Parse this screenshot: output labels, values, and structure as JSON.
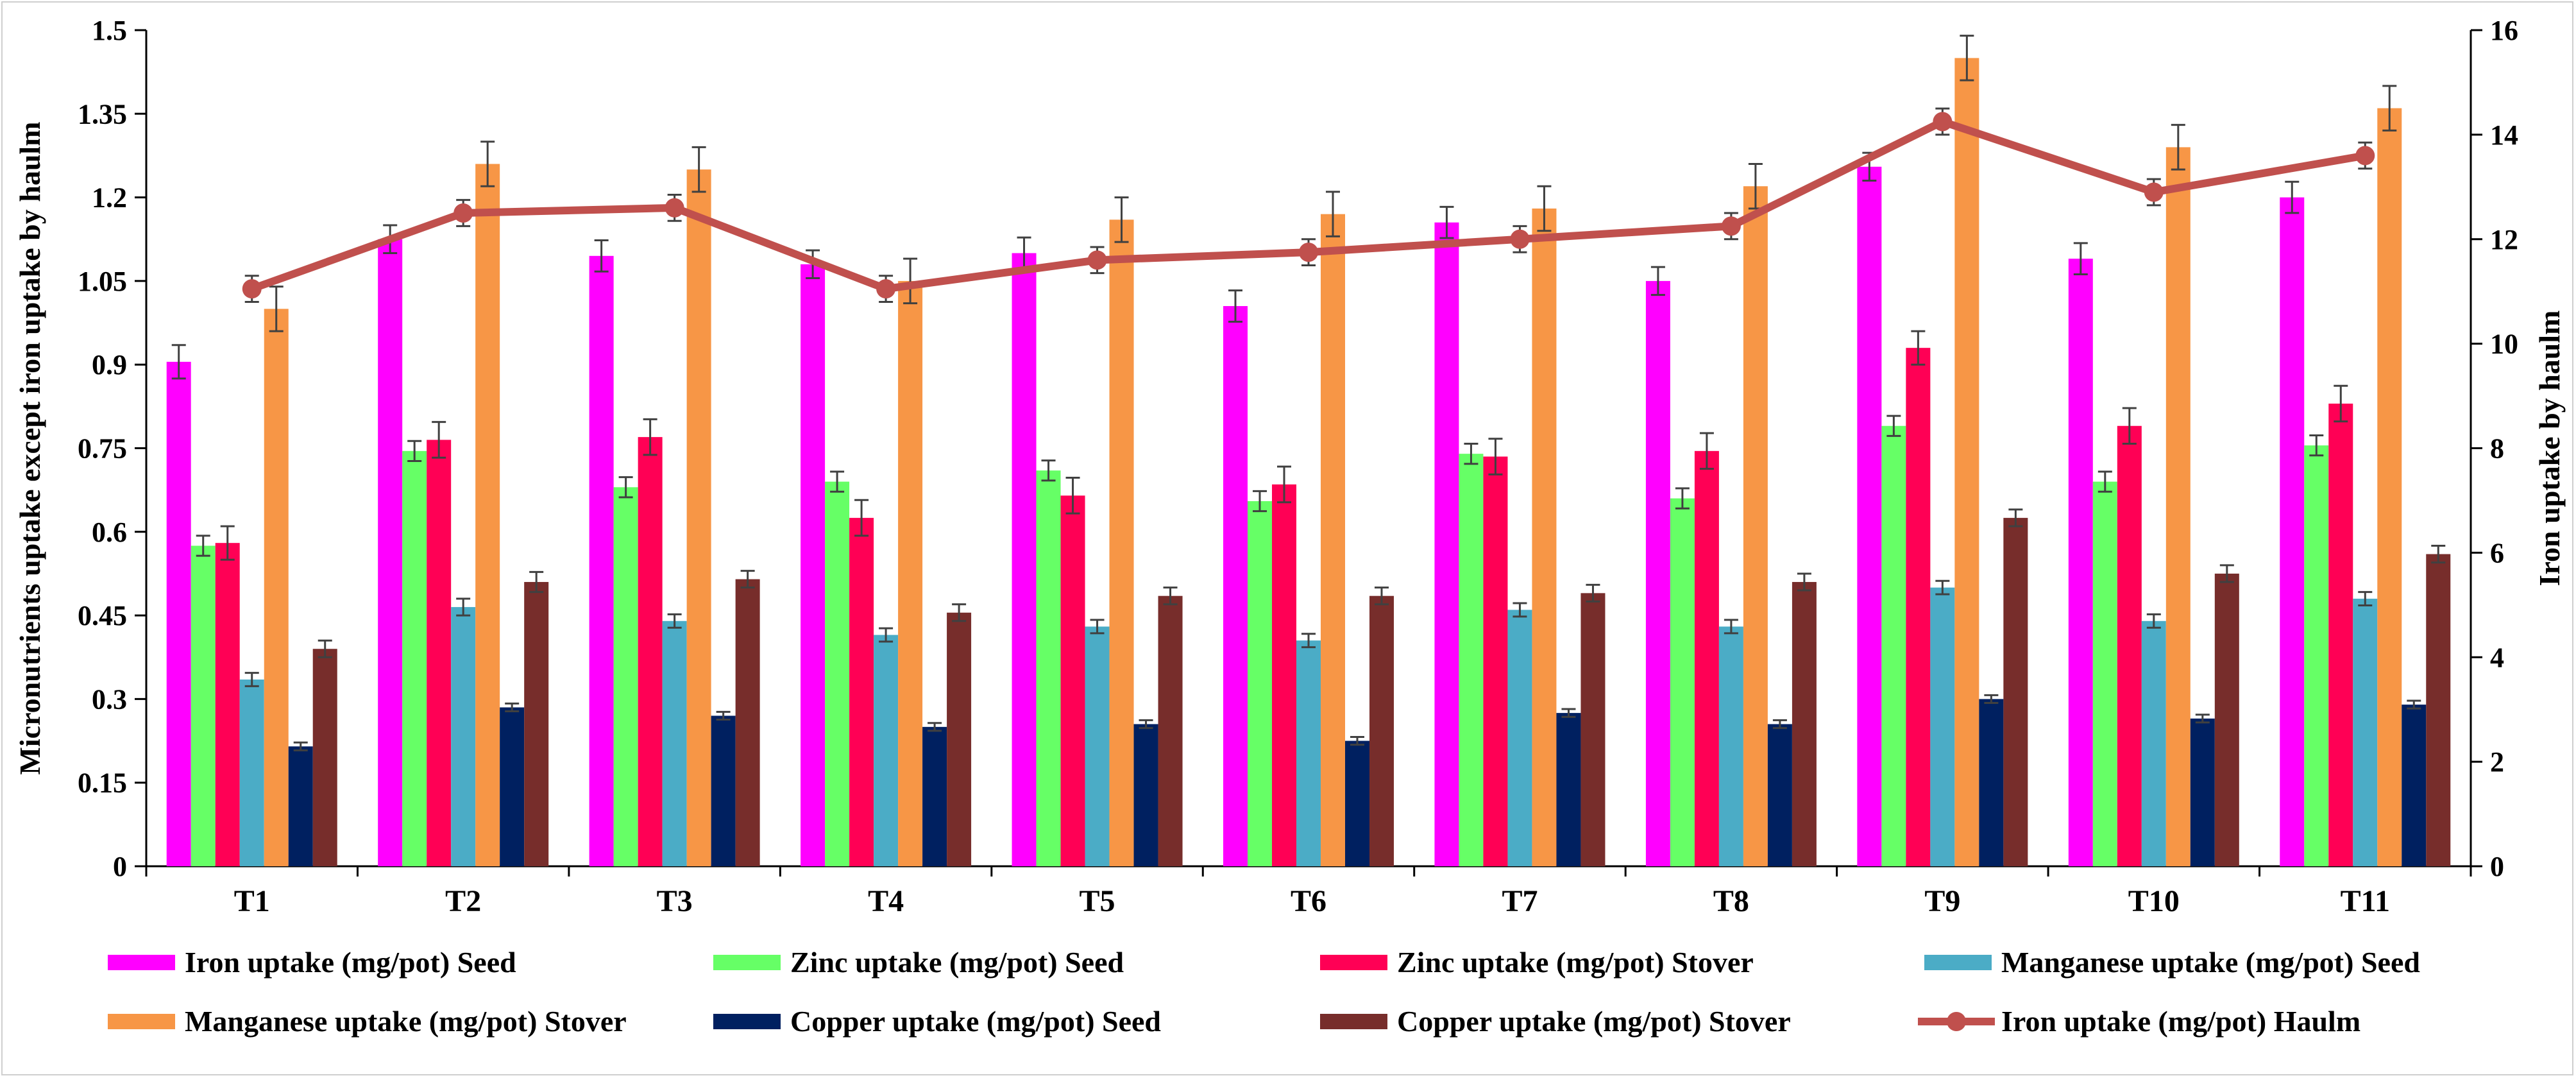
{
  "chart_data": {
    "type": "bar",
    "categories": [
      "T1",
      "T2",
      "T3",
      "T4",
      "T5",
      "T6",
      "T7",
      "T8",
      "T9",
      "T10",
      "T11"
    ],
    "ylabel": "Micronutrients uptake except iron uptake by haulm",
    "y2label": "Iron uptake by haulm",
    "ylim": [
      0,
      1.5
    ],
    "y2lim": [
      0,
      16
    ],
    "yticks": [
      "0",
      "0.15",
      "0.3",
      "0.45",
      "0.6",
      "0.75",
      "0.9",
      "1.05",
      "1.2",
      "1.35",
      "1.5"
    ],
    "y2ticks": [
      "0",
      "2",
      "4",
      "6",
      "8",
      "10",
      "12",
      "14",
      "16"
    ],
    "series": [
      {
        "name": "Iron uptake (mg/pot) Seed",
        "color": "#ff00ff",
        "type": "bar",
        "axis": "left",
        "values": [
          0.905,
          1.125,
          1.095,
          1.08,
          1.1,
          1.005,
          1.155,
          1.05,
          1.255,
          1.09,
          1.2
        ],
        "errors": [
          0.03,
          0.025,
          0.028,
          0.025,
          0.028,
          0.028,
          0.028,
          0.025,
          0.025,
          0.028,
          0.028
        ]
      },
      {
        "name": "Zinc uptake (mg/pot) Seed",
        "color": "#66ff66",
        "type": "bar",
        "axis": "left",
        "values": [
          0.575,
          0.745,
          0.68,
          0.69,
          0.71,
          0.655,
          0.74,
          0.66,
          0.79,
          0.69,
          0.755
        ],
        "errors": [
          0.018,
          0.018,
          0.018,
          0.018,
          0.018,
          0.018,
          0.018,
          0.018,
          0.018,
          0.018,
          0.018
        ]
      },
      {
        "name": "Zinc uptake (mg/pot) Stover",
        "color": "#ff0055",
        "type": "bar",
        "axis": "left",
        "values": [
          0.58,
          0.765,
          0.77,
          0.625,
          0.665,
          0.685,
          0.735,
          0.745,
          0.93,
          0.79,
          0.83
        ],
        "errors": [
          0.03,
          0.032,
          0.032,
          0.032,
          0.032,
          0.032,
          0.032,
          0.032,
          0.03,
          0.032,
          0.032
        ]
      },
      {
        "name": "Manganese uptake (mg/pot) Seed",
        "color": "#4bacc6",
        "type": "bar",
        "axis": "left",
        "values": [
          0.335,
          0.465,
          0.44,
          0.415,
          0.43,
          0.405,
          0.46,
          0.43,
          0.5,
          0.44,
          0.48
        ],
        "errors": [
          0.012,
          0.015,
          0.012,
          0.012,
          0.012,
          0.012,
          0.012,
          0.012,
          0.012,
          0.012,
          0.012
        ]
      },
      {
        "name": "Manganese uptake (mg/pot) Stover",
        "color": "#f79646",
        "type": "bar",
        "axis": "left",
        "values": [
          1.0,
          1.26,
          1.25,
          1.05,
          1.16,
          1.17,
          1.18,
          1.22,
          1.45,
          1.29,
          1.36
        ],
        "errors": [
          0.04,
          0.04,
          0.04,
          0.04,
          0.04,
          0.04,
          0.04,
          0.04,
          0.04,
          0.04,
          0.04
        ]
      },
      {
        "name": "Copper uptake (mg/pot) Seed",
        "color": "#002060",
        "type": "bar",
        "axis": "left",
        "values": [
          0.215,
          0.285,
          0.27,
          0.25,
          0.255,
          0.225,
          0.275,
          0.255,
          0.3,
          0.265,
          0.29
        ],
        "errors": [
          0.007,
          0.007,
          0.007,
          0.007,
          0.007,
          0.007,
          0.007,
          0.007,
          0.007,
          0.007,
          0.007
        ]
      },
      {
        "name": "Copper uptake (mg/pot) Stover",
        "color": "#772d2b",
        "type": "bar",
        "axis": "left",
        "values": [
          0.39,
          0.51,
          0.515,
          0.455,
          0.485,
          0.485,
          0.49,
          0.51,
          0.625,
          0.525,
          0.56
        ],
        "errors": [
          0.015,
          0.018,
          0.015,
          0.015,
          0.015,
          0.015,
          0.015,
          0.015,
          0.015,
          0.015,
          0.015
        ]
      },
      {
        "name": "Iron uptake (mg/pot) Haulm",
        "color": "#c0504d",
        "type": "line",
        "axis": "right",
        "values": [
          11.05,
          12.5,
          12.6,
          11.05,
          11.6,
          11.75,
          12.0,
          12.25,
          14.25,
          12.9,
          13.6
        ],
        "errors": [
          0.25,
          0.25,
          0.25,
          0.25,
          0.25,
          0.25,
          0.25,
          0.25,
          0.25,
          0.25,
          0.25
        ]
      }
    ]
  }
}
